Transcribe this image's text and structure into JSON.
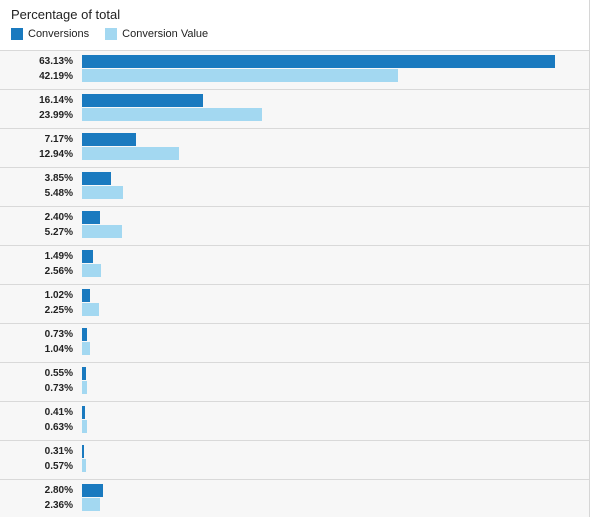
{
  "header": {
    "title": "Percentage of total"
  },
  "colors": {
    "conversions": "#1a7abf",
    "conversion_value": "#a3d8f1"
  },
  "chart_data": {
    "type": "bar",
    "orientation": "horizontal",
    "title": "Percentage of total",
    "legend": "top-left",
    "xlim": [
      0,
      70
    ],
    "categories": [
      "",
      "",
      "",
      "",
      "",
      "",
      "",
      "",
      "",
      "",
      "",
      ""
    ],
    "series": [
      {
        "name": "Conversions",
        "color": "#1a7abf",
        "values": [
          63.13,
          16.14,
          7.17,
          3.85,
          2.4,
          1.49,
          1.02,
          0.73,
          0.55,
          0.41,
          0.31,
          2.8
        ],
        "labels": [
          "63.13%",
          "16.14%",
          "7.17%",
          "3.85%",
          "2.40%",
          "1.49%",
          "1.02%",
          "0.73%",
          "0.55%",
          "0.41%",
          "0.31%",
          "2.80%"
        ]
      },
      {
        "name": "Conversion Value",
        "color": "#a3d8f1",
        "values": [
          42.19,
          23.99,
          12.94,
          5.48,
          5.27,
          2.56,
          2.25,
          1.04,
          0.73,
          0.63,
          0.57,
          2.36
        ],
        "labels": [
          "42.19%",
          "23.99%",
          "12.94%",
          "5.48%",
          "5.27%",
          "2.56%",
          "2.25%",
          "1.04%",
          "0.73%",
          "0.63%",
          "0.57%",
          "2.36%"
        ]
      }
    ]
  }
}
